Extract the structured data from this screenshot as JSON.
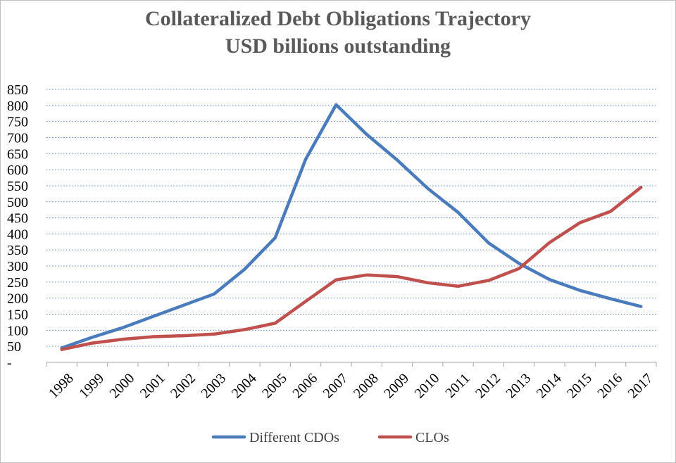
{
  "chart_data": {
    "type": "line",
    "title": "Collateralized Debt Obligations Trajectory",
    "subtitle": "USD billions outstanding",
    "xlabel": "",
    "ylabel": "",
    "categories": [
      "1998",
      "1999",
      "2000",
      "2001",
      "2002",
      "2003",
      "2004",
      "2005",
      "2006",
      "2007",
      "2008",
      "2009",
      "2010",
      "2011",
      "2012",
      "2013",
      "2014",
      "2015",
      "2016",
      "2017"
    ],
    "y_tick_labels": [
      "-",
      "50",
      "100",
      "150",
      "200",
      "250",
      "300",
      "350",
      "400",
      "450",
      "500",
      "550",
      "600",
      "650",
      "700",
      "750",
      "800",
      "850"
    ],
    "ylim": [
      0,
      850
    ],
    "y_step": 50,
    "grid": "horizontal-dotted",
    "legend_position": "bottom",
    "series": [
      {
        "name": "Different CDOs",
        "color": "#4a7bbd",
        "values": [
          45,
          78,
          108,
          143,
          178,
          213,
          290,
          388,
          632,
          802,
          710,
          630,
          542,
          467,
          372,
          308,
          258,
          224,
          198,
          174
        ]
      },
      {
        "name": "CLOs",
        "color": "#c0504d",
        "values": [
          40,
          60,
          72,
          80,
          83,
          88,
          102,
          122,
          190,
          257,
          272,
          267,
          248,
          237,
          255,
          292,
          373,
          435,
          470,
          545
        ]
      }
    ]
  }
}
